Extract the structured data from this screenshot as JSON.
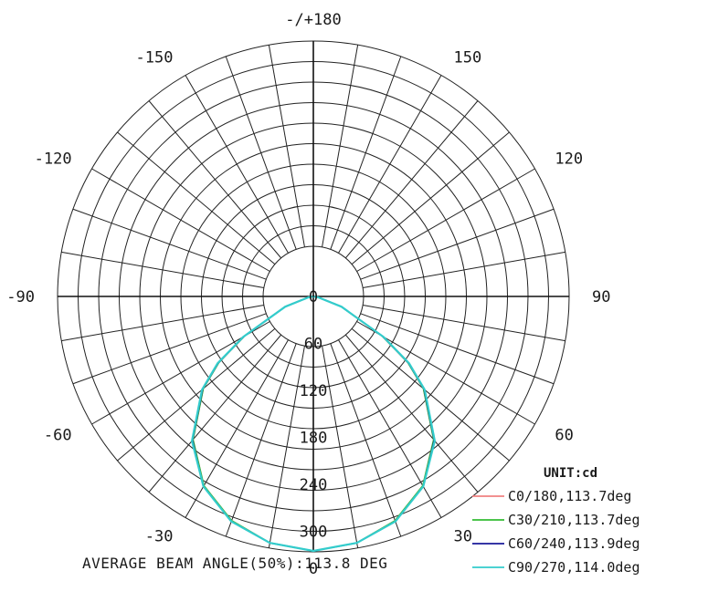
{
  "chart_data": {
    "type": "polar",
    "angular_labels": [
      {
        "text": "-/+180",
        "angle": 180,
        "side": "right"
      },
      {
        "text": "150",
        "angle": 150,
        "side": "right"
      },
      {
        "text": "120",
        "angle": 120,
        "side": "right"
      },
      {
        "text": "90",
        "angle": 90,
        "side": "right"
      },
      {
        "text": "60",
        "angle": 60,
        "side": "right"
      },
      {
        "text": "30",
        "angle": 30,
        "side": "right"
      },
      {
        "text": "0",
        "angle": 0,
        "side": "right"
      },
      {
        "text": "-30",
        "angle": 30,
        "side": "left"
      },
      {
        "text": "-60",
        "angle": 60,
        "side": "left"
      },
      {
        "text": "-90",
        "angle": 90,
        "side": "left"
      },
      {
        "text": "-120",
        "angle": 120,
        "side": "left"
      },
      {
        "text": "-150",
        "angle": 150,
        "side": "left"
      }
    ],
    "radial_ticks": [
      {
        "label": "0",
        "value": 0
      },
      {
        "label": "60",
        "value": 60
      },
      {
        "label": "120",
        "value": 120
      },
      {
        "label": "180",
        "value": 180
      },
      {
        "label": "240",
        "value": 240
      },
      {
        "label": "300",
        "value": 300
      }
    ],
    "radial_max": 300,
    "grid": true,
    "legend_position": "bottom-right",
    "unit_label": "UNIT:cd",
    "series": [
      {
        "name": "C0/180,113.7deg",
        "color": "#f08080",
        "angles": [
          0,
          10,
          20,
          30,
          40,
          50,
          55,
          60,
          70,
          80,
          90
        ],
        "values": [
          305,
          300,
          286,
          262,
          224,
          172,
          138,
          95,
          35,
          6,
          0
        ]
      },
      {
        "name": "C30/210,113.7deg",
        "color": "#33bb33",
        "angles": [
          0,
          10,
          20,
          30,
          40,
          50,
          55,
          60,
          70,
          80,
          90
        ],
        "values": [
          305,
          300,
          286,
          262,
          224,
          172,
          138,
          95,
          35,
          6,
          0
        ]
      },
      {
        "name": "C60/240,113.9deg",
        "color": "#1a1a99",
        "angles": [
          0,
          10,
          20,
          30,
          40,
          50,
          55,
          60,
          70,
          80,
          90
        ],
        "values": [
          305,
          300,
          287,
          263,
          225,
          173,
          139,
          96,
          36,
          6,
          0
        ]
      },
      {
        "name": "C90/270,114.0deg",
        "color": "#33cccc",
        "angles": [
          0,
          10,
          20,
          30,
          40,
          50,
          55,
          60,
          70,
          80,
          90
        ],
        "values": [
          305,
          300,
          287,
          263,
          226,
          174,
          140,
          97,
          36,
          6,
          0
        ]
      }
    ],
    "footer": "AVERAGE BEAM ANGLE(50%):113.8 DEG"
  }
}
